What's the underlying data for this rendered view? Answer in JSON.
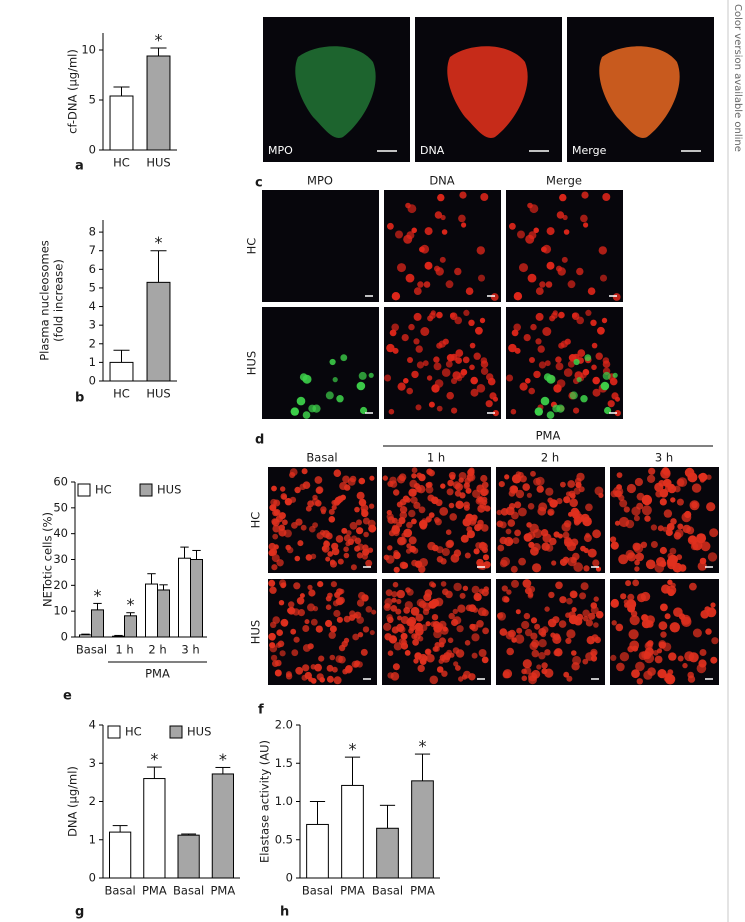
{
  "side_note": "Color version available online",
  "chart_data": [
    {
      "type": "bar",
      "panel": "a",
      "ylabel": [
        "cf-DNA (µg/ml)"
      ],
      "categories": [
        "HC",
        "HUS"
      ],
      "series": [
        {
          "colors": [
            "#ffffff",
            "#a6a6a6"
          ],
          "values": [
            5.4,
            9.4
          ],
          "errors": [
            0.9,
            0.8
          ],
          "significance": [
            null,
            "*"
          ]
        }
      ],
      "ylim": [
        0,
        11.7
      ],
      "yticks": [
        0,
        5,
        10
      ]
    },
    {
      "type": "bar",
      "panel": "b",
      "ylabel": [
        "Plasma nucleosomes",
        "(fold increase)"
      ],
      "categories": [
        "HC",
        "HUS"
      ],
      "series": [
        {
          "colors": [
            "#ffffff",
            "#a6a6a6"
          ],
          "values": [
            1.0,
            5.3
          ],
          "errors": [
            0.65,
            1.7
          ],
          "significance": [
            null,
            "*"
          ]
        }
      ],
      "ylim": [
        0,
        8.65
      ],
      "yticks": [
        0,
        1,
        2,
        3,
        4,
        5,
        6,
        7,
        8
      ]
    },
    {
      "type": "bar",
      "panel": "e",
      "ylabel": [
        "NETotic cells (%)"
      ],
      "categories": [
        "Basal",
        "1 h",
        "2 h",
        "3 h"
      ],
      "group_label": "PMA",
      "series": [
        {
          "name": "HC",
          "color": "#ffffff",
          "values": [
            0.8,
            0.3,
            20.5,
            30.5
          ],
          "errors": [
            0.3,
            0.3,
            4,
            4.3
          ]
        },
        {
          "name": "HUS",
          "color": "#a6a6a6",
          "values": [
            10.5,
            8.2,
            18.2,
            30
          ],
          "errors": [
            2.5,
            1.2,
            2,
            3.5
          ],
          "significance": [
            "*",
            "*",
            null,
            null
          ]
        }
      ],
      "ylim": [
        0,
        60
      ],
      "yticks": [
        0,
        10,
        20,
        30,
        40,
        50,
        60
      ]
    },
    {
      "type": "bar",
      "panel": "g",
      "ylabel": [
        "DNA (µg/ml)"
      ],
      "categories": [
        "Basal",
        "PMA",
        "Basal",
        "PMA"
      ],
      "legend": [
        {
          "name": "HC",
          "color": "#ffffff"
        },
        {
          "name": "HUS",
          "color": "#a6a6a6"
        }
      ],
      "series": [
        {
          "colors": [
            "#ffffff",
            "#ffffff",
            "#a6a6a6",
            "#a6a6a6"
          ],
          "values": [
            1.2,
            2.6,
            1.12,
            2.72
          ],
          "errors": [
            0.17,
            0.3,
            0.03,
            0.17
          ],
          "significance": [
            null,
            "*",
            null,
            "*"
          ]
        }
      ],
      "ylim": [
        0,
        4
      ],
      "yticks": [
        0,
        1,
        2,
        3,
        4
      ]
    },
    {
      "type": "bar",
      "panel": "h",
      "ylabel": [
        "Elastase activity (AU)"
      ],
      "categories": [
        "Basal",
        "PMA",
        "Basal",
        "PMA"
      ],
      "series": [
        {
          "colors": [
            "#ffffff",
            "#ffffff",
            "#a6a6a6",
            "#a6a6a6"
          ],
          "values": [
            0.7,
            1.21,
            0.65,
            1.27
          ],
          "errors": [
            0.3,
            0.37,
            0.3,
            0.35
          ],
          "significance": [
            null,
            "*",
            null,
            "*"
          ]
        }
      ],
      "ylim": [
        0,
        2
      ],
      "yticks": [
        0,
        0.5,
        {
          "value": 1,
          "label": "1.0"
        },
        1.5,
        {
          "value": 2,
          "label": "2.0"
        }
      ]
    }
  ],
  "image_panels": {
    "c": {
      "panel": "c",
      "labels": [
        "MPO",
        "DNA",
        "Merge"
      ]
    },
    "d": {
      "panel": "d",
      "columns": [
        "MPO",
        "DNA",
        "Merge"
      ],
      "rows": [
        "HC",
        "HUS"
      ]
    },
    "f": {
      "panel": "f",
      "columns": [
        "Basal",
        "1 h",
        "2 h",
        "3 h"
      ],
      "group_label": "PMA",
      "rows": [
        "HC",
        "HUS"
      ]
    }
  }
}
